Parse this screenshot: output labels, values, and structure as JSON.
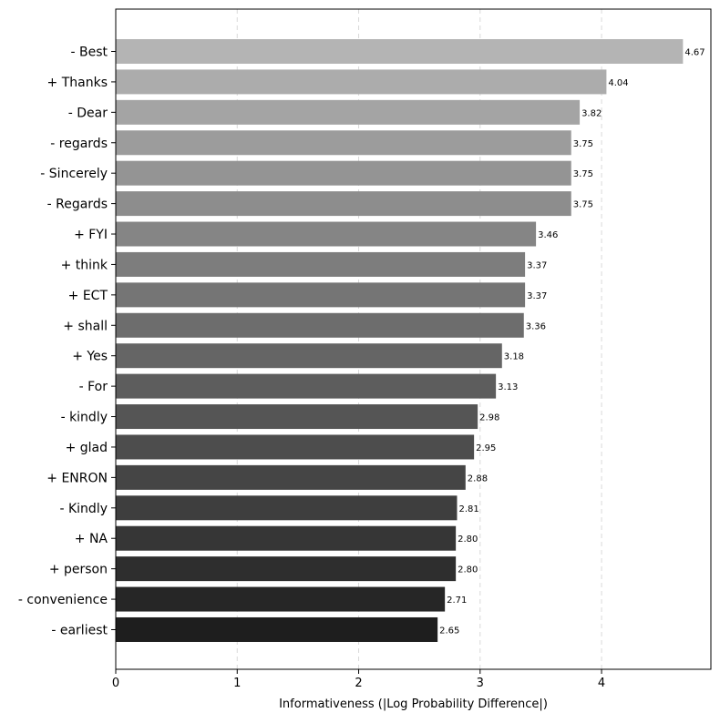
{
  "chart_data": {
    "type": "bar",
    "orientation": "horizontal",
    "title": "",
    "xlabel": "Informativeness (|Log Probability Difference|)",
    "ylabel": "",
    "xlim": [
      0,
      4.9
    ],
    "x_ticks": [
      0,
      1,
      2,
      3,
      4
    ],
    "grid": "vertical dashed",
    "legend": "none",
    "categories": [
      "- Best",
      "+ Thanks",
      "- Dear",
      "- regards",
      "- Sincerely",
      "- Regards",
      "+ FYI",
      "+ think",
      "+ ECT",
      "+ shall",
      "+ Yes",
      "- For",
      "- kindly",
      "+ glad",
      "+ ENRON",
      "- Kindly",
      "+ NA",
      "+ person",
      "- convenience",
      "- earliest"
    ],
    "values": [
      4.67,
      4.04,
      3.82,
      3.75,
      3.75,
      3.75,
      3.46,
      3.37,
      3.37,
      3.36,
      3.18,
      3.13,
      2.98,
      2.95,
      2.88,
      2.81,
      2.8,
      2.8,
      2.71,
      2.65
    ],
    "value_labels": [
      "4.67",
      "4.04",
      "3.82",
      "3.75",
      "3.75",
      "3.75",
      "3.46",
      "3.37",
      "3.37",
      "3.36",
      "3.18",
      "3.13",
      "2.98",
      "2.95",
      "2.88",
      "2.81",
      "2.80",
      "2.80",
      "2.71",
      "2.65"
    ],
    "colors": {
      "bar_first": "#b4b4b4",
      "bar_last": "#1e1e1e",
      "grid": "#d9d9d9",
      "axis": "#000000"
    }
  }
}
